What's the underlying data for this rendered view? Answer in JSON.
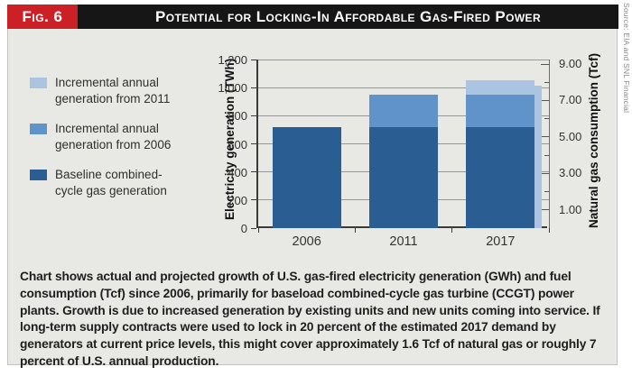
{
  "figure": {
    "label": "Fig. 6",
    "title": "Potential for Locking-In Affordable Gas-Fired Power",
    "source": "Source: EIA and SNL Financial"
  },
  "colors": {
    "accent_red": "#cb2026",
    "header_black": "#161616",
    "panel_bg": "#e8e8e5",
    "baseline": "#2a5d92",
    "inc2006": "#5f93c9",
    "inc2011": "#abc4e2",
    "gridline": "#98989a",
    "axis": "#3a3a3a"
  },
  "legend": {
    "items": [
      {
        "label": "Incremental annual generation from 2011",
        "color_key": "inc2011"
      },
      {
        "label": "Incremental annual generation from 2006",
        "color_key": "inc2006"
      },
      {
        "label": "Baseline combined-cycle gas generation",
        "color_key": "baseline"
      }
    ]
  },
  "chart_data": {
    "type": "bar",
    "stacked": true,
    "categories": [
      "2006",
      "2011",
      "2017"
    ],
    "series": [
      {
        "name": "Baseline combined-cycle gas generation",
        "color_key": "baseline",
        "values": [
          720,
          720,
          720
        ]
      },
      {
        "name": "Incremental annual generation from 2006",
        "color_key": "inc2006",
        "values": [
          0,
          230,
          230
        ]
      },
      {
        "name": "Incremental annual generation from 2011",
        "color_key": "inc2011",
        "values": [
          0,
          0,
          100
        ]
      }
    ],
    "totals_twh": [
      720,
      950,
      1050
    ],
    "left_axis": {
      "label": "Electricity generation (TWh)",
      "min": 0,
      "max": 1200,
      "tick_step": 200,
      "tick_labels": [
        "0",
        "200",
        "400",
        "600",
        "800",
        "1,000",
        "1,200"
      ]
    },
    "right_axis": {
      "label": "Natural gas consumption (Tcf)",
      "min": 0,
      "max": 9,
      "minor_tick_step": 1,
      "labeled_ticks": [
        {
          "value": 1,
          "label": "1.00"
        },
        {
          "value": 3,
          "label": "3.00"
        },
        {
          "value": 5,
          "label": "5.00"
        },
        {
          "value": 7,
          "label": "7.00"
        },
        {
          "value": 9,
          "label": "9.00"
        }
      ]
    },
    "gas_strip": {
      "category": "2017",
      "approx_value_tcf": 7.8,
      "color_key": "inc2011"
    },
    "grid": true,
    "legend_position": "left"
  },
  "caption": "Chart shows actual and projected growth of U.S. gas-fired electricity generation (GWh) and fuel consumption (Tcf) since 2006, primarily for baseload combined-cycle gas turbine (CCGT) power plants. Growth is due to increased generation by existing units and new units coming into service. If long-term supply contracts were used to lock in 20 percent of the estimated 2017 demand by generators at current price levels, this might cover approximately 1.6 Tcf of natural gas or roughly 7 percent of U.S. annual production."
}
